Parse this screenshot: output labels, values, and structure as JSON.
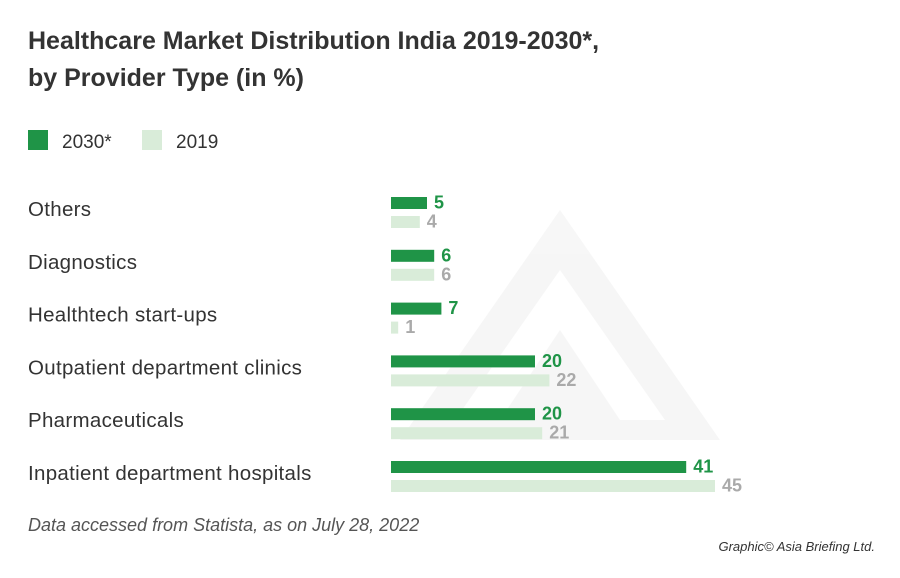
{
  "chart_data": {
    "type": "bar",
    "orientation": "horizontal",
    "title_line1": "Healthcare Market Distribution India 2019-2030*,",
    "title_line2": "by Provider Type (in %)",
    "categories": [
      "Others",
      "Diagnostics",
      "Healthtech start-ups",
      "Outpatient department clinics",
      "Pharmaceuticals",
      "Inpatient department hospitals"
    ],
    "series": [
      {
        "name": "2030*",
        "color": "#1f9447",
        "label_color": "#1f9447",
        "values": [
          5,
          6,
          7,
          20,
          20,
          41
        ]
      },
      {
        "name": "2019",
        "color": "#d9ecd9",
        "label_color": "#aaaaaa",
        "values": [
          4,
          6,
          1,
          22,
          21,
          45
        ]
      }
    ],
    "xlim": [
      0,
      45
    ],
    "grid": false,
    "legend_position": "top-left"
  },
  "footer": {
    "source": "Data accessed from Statista, as on July 28, 2022",
    "credit": "Graphic© Asia Briefing Ltd."
  }
}
